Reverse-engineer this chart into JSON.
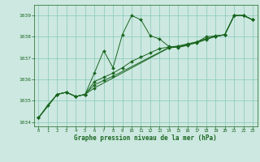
{
  "title": "Graphe pression niveau de la mer (hPa)",
  "bg_color": "#cce8e0",
  "grid_color": "#88c8b8",
  "line_color": "#1a6620",
  "marker_color": "#1a6620",
  "xlim": [
    -0.5,
    23.5
  ],
  "ylim": [
    1033.8,
    1039.5
  ],
  "xticks": [
    0,
    1,
    2,
    3,
    4,
    5,
    6,
    7,
    8,
    9,
    10,
    11,
    12,
    13,
    14,
    15,
    16,
    17,
    18,
    19,
    20,
    21,
    22,
    23
  ],
  "yticks": [
    1034,
    1035,
    1036,
    1037,
    1038,
    1039
  ],
  "series1": {
    "x": [
      0,
      1,
      2,
      3,
      4,
      5,
      6,
      7,
      8,
      9,
      10,
      11,
      12,
      13,
      14,
      15,
      16,
      17,
      18,
      19,
      20,
      21,
      22,
      23
    ],
    "y": [
      1034.2,
      1034.8,
      1035.3,
      1035.4,
      1035.2,
      1035.3,
      1036.3,
      1037.35,
      1036.55,
      1038.1,
      1039.0,
      1038.8,
      1038.05,
      1037.9,
      1037.55,
      1037.5,
      1037.6,
      1037.75,
      1038.0,
      1038.05,
      1038.1,
      1039.0,
      1039.0,
      1038.8
    ]
  },
  "series2": {
    "x": [
      0,
      2,
      3,
      4,
      5,
      6,
      7,
      8,
      9,
      10,
      11,
      12,
      13,
      14,
      15,
      16,
      17,
      18,
      19,
      20,
      21,
      22,
      23
    ],
    "y": [
      1034.2,
      1035.3,
      1035.4,
      1035.2,
      1035.3,
      1035.9,
      1036.1,
      1036.3,
      1036.55,
      1036.85,
      1037.05,
      1037.25,
      1037.45,
      1037.52,
      1037.57,
      1037.67,
      1037.77,
      1037.92,
      1038.02,
      1038.1,
      1039.0,
      1039.0,
      1038.8
    ]
  },
  "series3": {
    "x": [
      0,
      2,
      3,
      4,
      5,
      6,
      7,
      8,
      14,
      15,
      16,
      17,
      18,
      19,
      20,
      21,
      22,
      23
    ],
    "y": [
      1034.2,
      1035.3,
      1035.4,
      1035.2,
      1035.3,
      1035.75,
      1035.95,
      1036.15,
      1037.5,
      1037.55,
      1037.65,
      1037.75,
      1037.9,
      1038.02,
      1038.1,
      1039.0,
      1039.0,
      1038.8
    ]
  },
  "series4": {
    "x": [
      0,
      2,
      3,
      4,
      5,
      6,
      14,
      15,
      16,
      17,
      18,
      19,
      20,
      21,
      22,
      23
    ],
    "y": [
      1034.2,
      1035.3,
      1035.4,
      1035.2,
      1035.3,
      1035.6,
      1037.48,
      1037.53,
      1037.62,
      1037.72,
      1037.87,
      1038.02,
      1038.1,
      1039.0,
      1039.0,
      1038.8
    ]
  }
}
